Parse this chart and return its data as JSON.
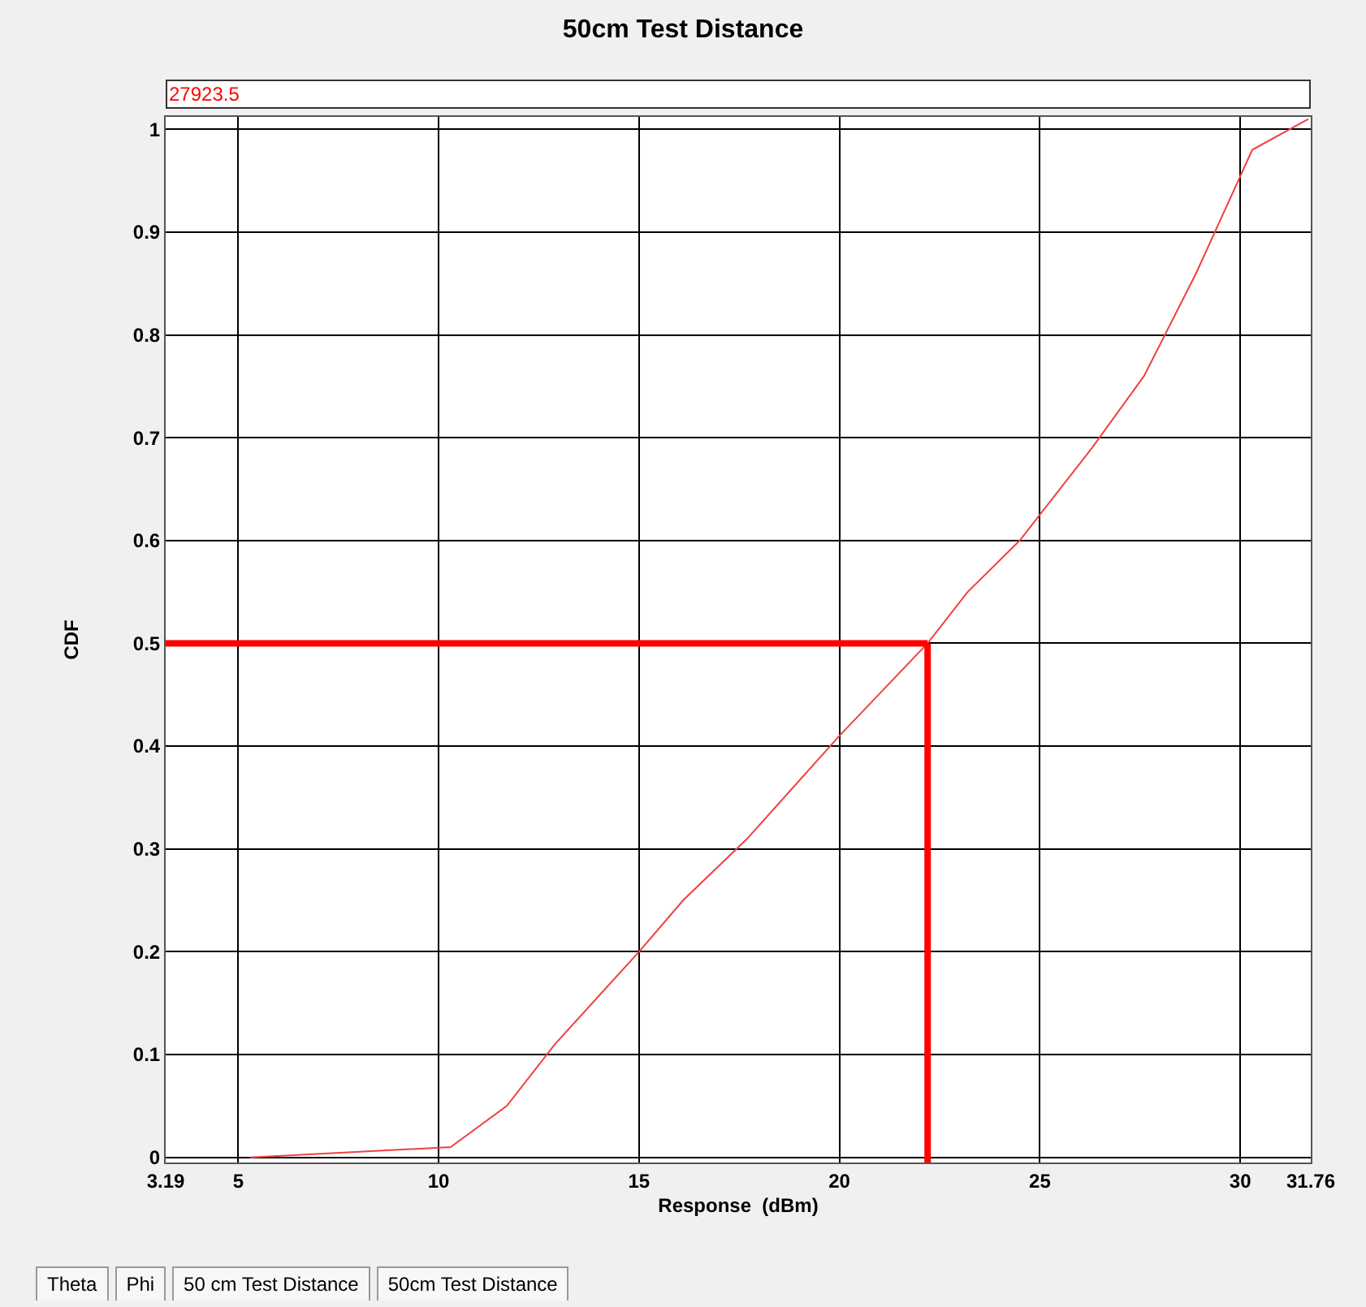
{
  "chart_data": {
    "type": "line",
    "title": "50cm Test Distance",
    "xlabel": "Response  (dBm)",
    "ylabel": "CDF",
    "annotations": [
      "27923.5",
      "Theta",
      "Phi",
      "50 cm Test Distance",
      "50cm Test Distance"
    ],
    "x": [
      5.3,
      10.3,
      11.7,
      12.9,
      15,
      16.1,
      17.7,
      20,
      22.2,
      23.2,
      24.5,
      26.3,
      27.6,
      28.9,
      30.3,
      31.7
    ],
    "series": [
      {
        "color": "#f04040",
        "values": [
          0,
          0.01,
          0.05,
          0.11,
          0.2,
          0.25,
          0.31,
          0.41,
          0.5,
          0.55,
          0.6,
          0.69,
          0.76,
          0.86,
          0.98,
          1.01
        ]
      }
    ],
    "xlim": [
      3.19,
      31.76
    ],
    "xticks": [
      3.19,
      5,
      10,
      15,
      20,
      25,
      30,
      31.76
    ],
    "ylim": [
      -0.005,
      1.012
    ],
    "yticks": [
      0,
      0.1,
      0.2,
      0.3,
      0.4,
      0.5,
      0.6,
      0.7,
      0.8,
      0.9,
      1
    ],
    "grid": true,
    "marker": "none",
    "line_style": "solid",
    "ref_lines": [
      {
        "axis": "y",
        "value": 0.5,
        "color": "#ff0000"
      },
      {
        "axis": "x",
        "value": 22.2,
        "color": "#ff0000"
      }
    ]
  }
}
